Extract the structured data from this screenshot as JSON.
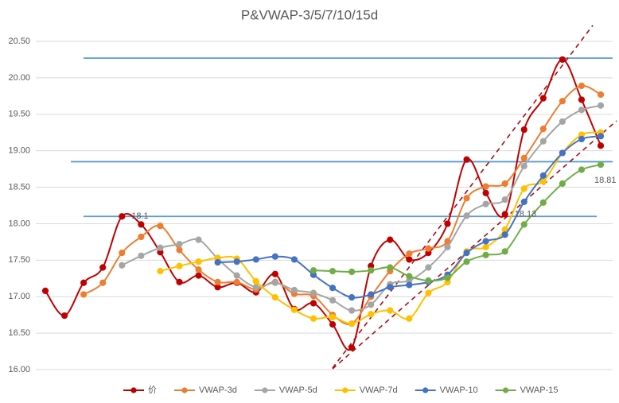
{
  "chart_data": {
    "type": "line",
    "title": "P&VWAP-3/5/7/10/15d",
    "categories": [
      null,
      null,
      null,
      null,
      null,
      null,
      null,
      null,
      null,
      null,
      null,
      null,
      null,
      null,
      null,
      null,
      null,
      null,
      null,
      null,
      null,
      null,
      null,
      null,
      null,
      null,
      null,
      null,
      null,
      null
    ],
    "ylim": [
      16,
      20.5
    ],
    "yticks": [
      {
        "value": 16,
        "label": "16.00"
      },
      {
        "value": 16.5,
        "label": "16.50"
      },
      {
        "value": 17,
        "label": "17.00"
      },
      {
        "value": 17.5,
        "label": "17.50"
      },
      {
        "value": 18,
        "label": "18.00"
      },
      {
        "value": 18.5,
        "label": "18.50"
      },
      {
        "value": 19,
        "label": "19.00"
      },
      {
        "value": 19.5,
        "label": "19.50"
      },
      {
        "value": 20,
        "label": "20.00"
      },
      {
        "value": 20.5,
        "label": "20.50"
      }
    ],
    "grid": true,
    "legend": "bottom",
    "smooth": true,
    "hlines": [
      20.27,
      18.85,
      18.1
    ],
    "hline_color": "#5b9bd5",
    "series": [
      {
        "name": "价",
        "color": "#c00000",
        "values": [
          17.08,
          16.74,
          17.19,
          17.4,
          18.1,
          17.99,
          17.61,
          17.2,
          17.29,
          17.13,
          17.19,
          17.06,
          17.31,
          16.83,
          16.91,
          16.62,
          16.3,
          17.42,
          17.78,
          17.51,
          17.6,
          18.0,
          18.88,
          18.42,
          18.13,
          19.29,
          19.72,
          20.25,
          19.7,
          19.07
        ],
        "value_labels": [
          null,
          null,
          null,
          null,
          "18.1",
          null,
          null,
          null,
          null,
          null,
          null,
          null,
          null,
          null,
          null,
          null,
          null,
          null,
          null,
          null,
          null,
          null,
          null,
          null,
          "18.13",
          null,
          null,
          null,
          null,
          null
        ]
      },
      {
        "name": "VWAP-3d",
        "color": "#ed7d31",
        "values": [
          null,
          null,
          17.03,
          17.19,
          17.6,
          17.82,
          17.97,
          17.64,
          17.37,
          17.2,
          17.2,
          17.1,
          17.2,
          17.04,
          17.01,
          16.75,
          16.63,
          17.0,
          17.35,
          17.59,
          17.66,
          17.76,
          18.35,
          18.51,
          18.55,
          18.9,
          19.3,
          19.68,
          19.89,
          19.77
        ]
      },
      {
        "name": "VWAP-5d",
        "color": "#a5a5a5",
        "values": [
          null,
          null,
          null,
          null,
          17.43,
          17.56,
          17.67,
          17.72,
          17.78,
          17.52,
          17.29,
          17.13,
          17.19,
          17.09,
          17.05,
          16.95,
          16.81,
          16.89,
          17.17,
          17.22,
          17.4,
          17.68,
          18.11,
          18.27,
          18.33,
          18.79,
          19.13,
          19.4,
          19.56,
          19.62
        ]
      },
      {
        "name": "VWAP-7d",
        "color": "#ffc000",
        "values": [
          null,
          null,
          null,
          null,
          null,
          null,
          17.35,
          17.42,
          17.48,
          17.53,
          17.52,
          17.21,
          16.99,
          16.82,
          16.7,
          16.72,
          16.63,
          16.76,
          16.81,
          16.7,
          17.05,
          17.2,
          17.62,
          17.68,
          17.92,
          18.48,
          18.58,
          18.97,
          19.22,
          19.25
        ]
      },
      {
        "name": "VWAP-10",
        "color": "#4472c4",
        "values": [
          null,
          null,
          null,
          null,
          null,
          null,
          null,
          null,
          null,
          17.47,
          17.48,
          17.51,
          17.55,
          17.51,
          17.3,
          17.12,
          16.99,
          17.03,
          17.13,
          17.16,
          17.2,
          17.3,
          17.6,
          17.76,
          17.85,
          18.3,
          18.66,
          18.97,
          19.16,
          19.2
        ]
      },
      {
        "name": "VWAP-15",
        "color": "#70ad47",
        "values": [
          null,
          null,
          null,
          null,
          null,
          null,
          null,
          null,
          null,
          null,
          null,
          null,
          null,
          null,
          17.36,
          17.35,
          17.34,
          17.36,
          17.4,
          17.28,
          17.22,
          17.26,
          17.48,
          17.57,
          17.62,
          17.99,
          18.29,
          18.55,
          18.74,
          18.81
        ],
        "value_labels": [
          null,
          null,
          null,
          null,
          null,
          null,
          null,
          null,
          null,
          null,
          null,
          null,
          null,
          null,
          null,
          null,
          null,
          null,
          null,
          null,
          null,
          null,
          null,
          null,
          null,
          null,
          null,
          null,
          null,
          "18.81"
        ]
      }
    ]
  }
}
